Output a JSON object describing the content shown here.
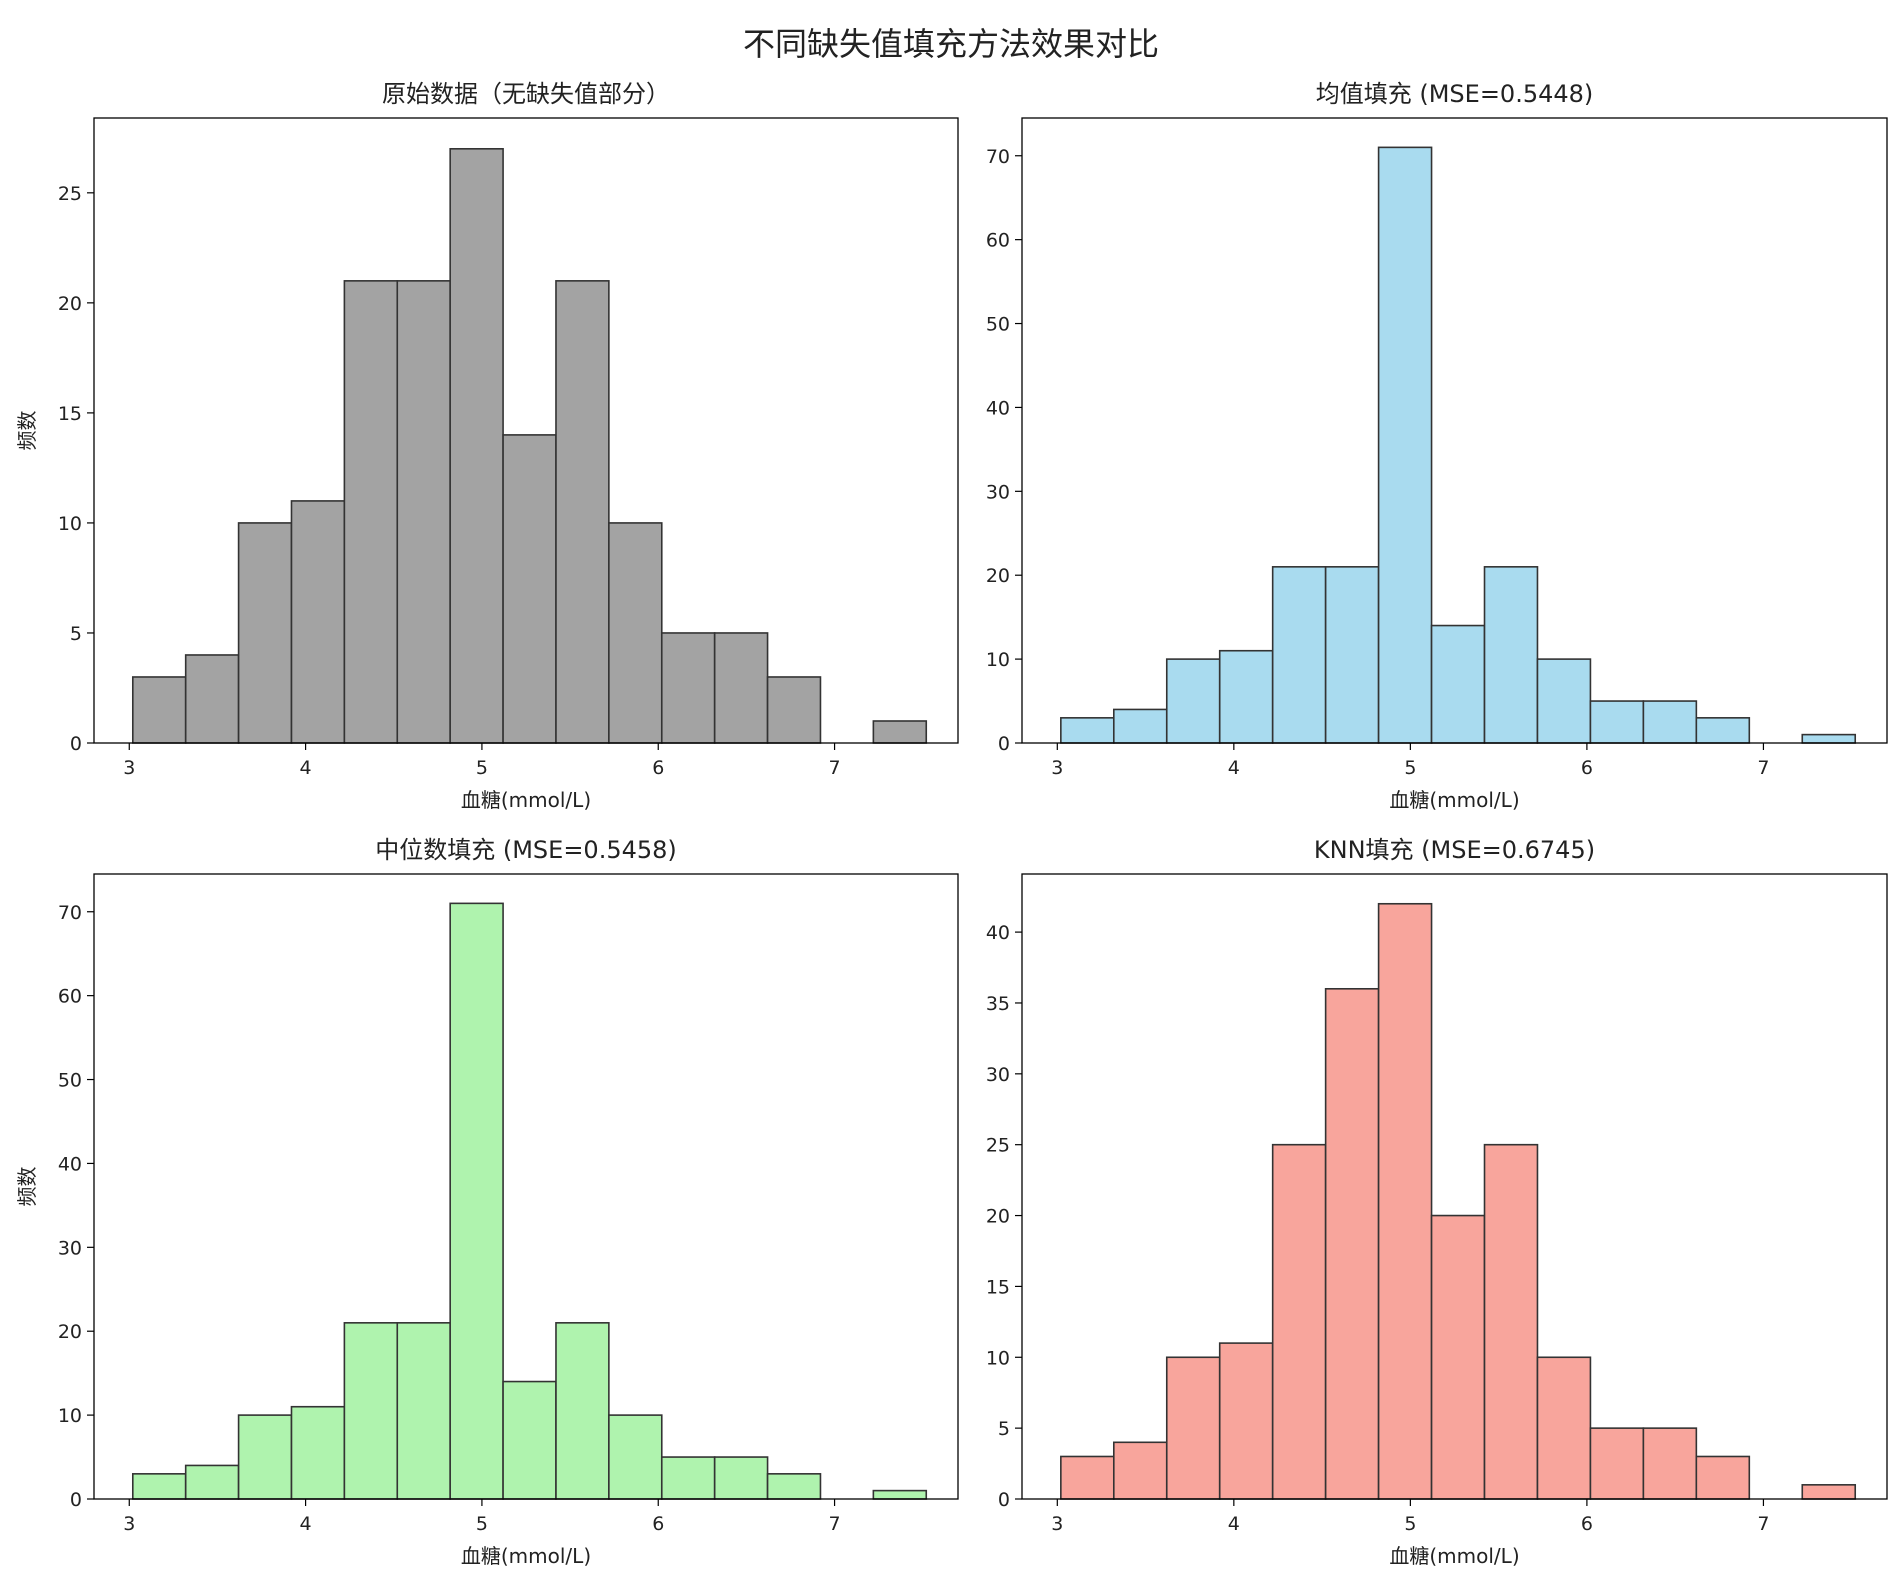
{
  "figure_title": "不同缺失值填充方法效果对比",
  "chart_data": [
    {
      "type": "bar",
      "title": "原始数据（无缺失值部分）",
      "xlabel": "血糖(mmol/L)",
      "ylabel": "频数",
      "bin_edges": [
        3.02,
        3.32,
        3.62,
        3.92,
        4.22,
        4.52,
        4.82,
        5.12,
        5.42,
        5.72,
        6.02,
        6.32,
        6.62,
        6.92,
        7.22,
        7.52
      ],
      "values": [
        3,
        4,
        10,
        11,
        21,
        21,
        27,
        14,
        21,
        10,
        5,
        5,
        3,
        0,
        1
      ],
      "xlim": [
        2.8,
        7.7
      ],
      "ylim": [
        0,
        28.4
      ],
      "xticks": [
        "3",
        "4",
        "5",
        "6",
        "7"
      ],
      "yticks": [
        "0",
        "5",
        "10",
        "15",
        "20",
        "25"
      ],
      "color": "#a3a3a3"
    },
    {
      "type": "bar",
      "title": "均值填充 (MSE=0.5448)",
      "xlabel": "血糖(mmol/L)",
      "ylabel": "",
      "bin_edges": [
        3.02,
        3.32,
        3.62,
        3.92,
        4.22,
        4.52,
        4.82,
        5.12,
        5.42,
        5.72,
        6.02,
        6.32,
        6.62,
        6.92,
        7.22,
        7.52
      ],
      "values": [
        3,
        4,
        10,
        11,
        21,
        21,
        71,
        14,
        21,
        10,
        5,
        5,
        3,
        0,
        1
      ],
      "xlim": [
        2.8,
        7.7
      ],
      "ylim": [
        0,
        74.5
      ],
      "xticks": [
        "3",
        "4",
        "5",
        "6",
        "7"
      ],
      "yticks": [
        "0",
        "10",
        "20",
        "30",
        "40",
        "50",
        "60",
        "70"
      ],
      "color": "#a9dbef"
    },
    {
      "type": "bar",
      "title": "中位数填充 (MSE=0.5458)",
      "xlabel": "血糖(mmol/L)",
      "ylabel": "频数",
      "bin_edges": [
        3.02,
        3.32,
        3.62,
        3.92,
        4.22,
        4.52,
        4.82,
        5.12,
        5.42,
        5.72,
        6.02,
        6.32,
        6.62,
        6.92,
        7.22,
        7.52
      ],
      "values": [
        3,
        4,
        10,
        11,
        21,
        21,
        71,
        14,
        21,
        10,
        5,
        5,
        3,
        0,
        1
      ],
      "xlim": [
        2.8,
        7.7
      ],
      "ylim": [
        0,
        74.5
      ],
      "xticks": [
        "3",
        "4",
        "5",
        "6",
        "7"
      ],
      "yticks": [
        "0",
        "10",
        "20",
        "30",
        "40",
        "50",
        "60",
        "70"
      ],
      "color": "#aff3ae"
    },
    {
      "type": "bar",
      "title": "KNN填充 (MSE=0.6745)",
      "xlabel": "血糖(mmol/L)",
      "ylabel": "",
      "bin_edges": [
        3.02,
        3.32,
        3.62,
        3.92,
        4.22,
        4.52,
        4.82,
        5.12,
        5.42,
        5.72,
        6.02,
        6.32,
        6.62,
        6.92,
        7.22,
        7.52
      ],
      "values": [
        3,
        4,
        10,
        11,
        25,
        36,
        42,
        20,
        25,
        10,
        5,
        5,
        3,
        0,
        1
      ],
      "xlim": [
        2.8,
        7.7
      ],
      "ylim": [
        0,
        44.1
      ],
      "xticks": [
        "3",
        "4",
        "5",
        "6",
        "7"
      ],
      "yticks": [
        "0",
        "5",
        "10",
        "15",
        "20",
        "25",
        "30",
        "35",
        "40"
      ],
      "color": "#f8a59c"
    }
  ]
}
